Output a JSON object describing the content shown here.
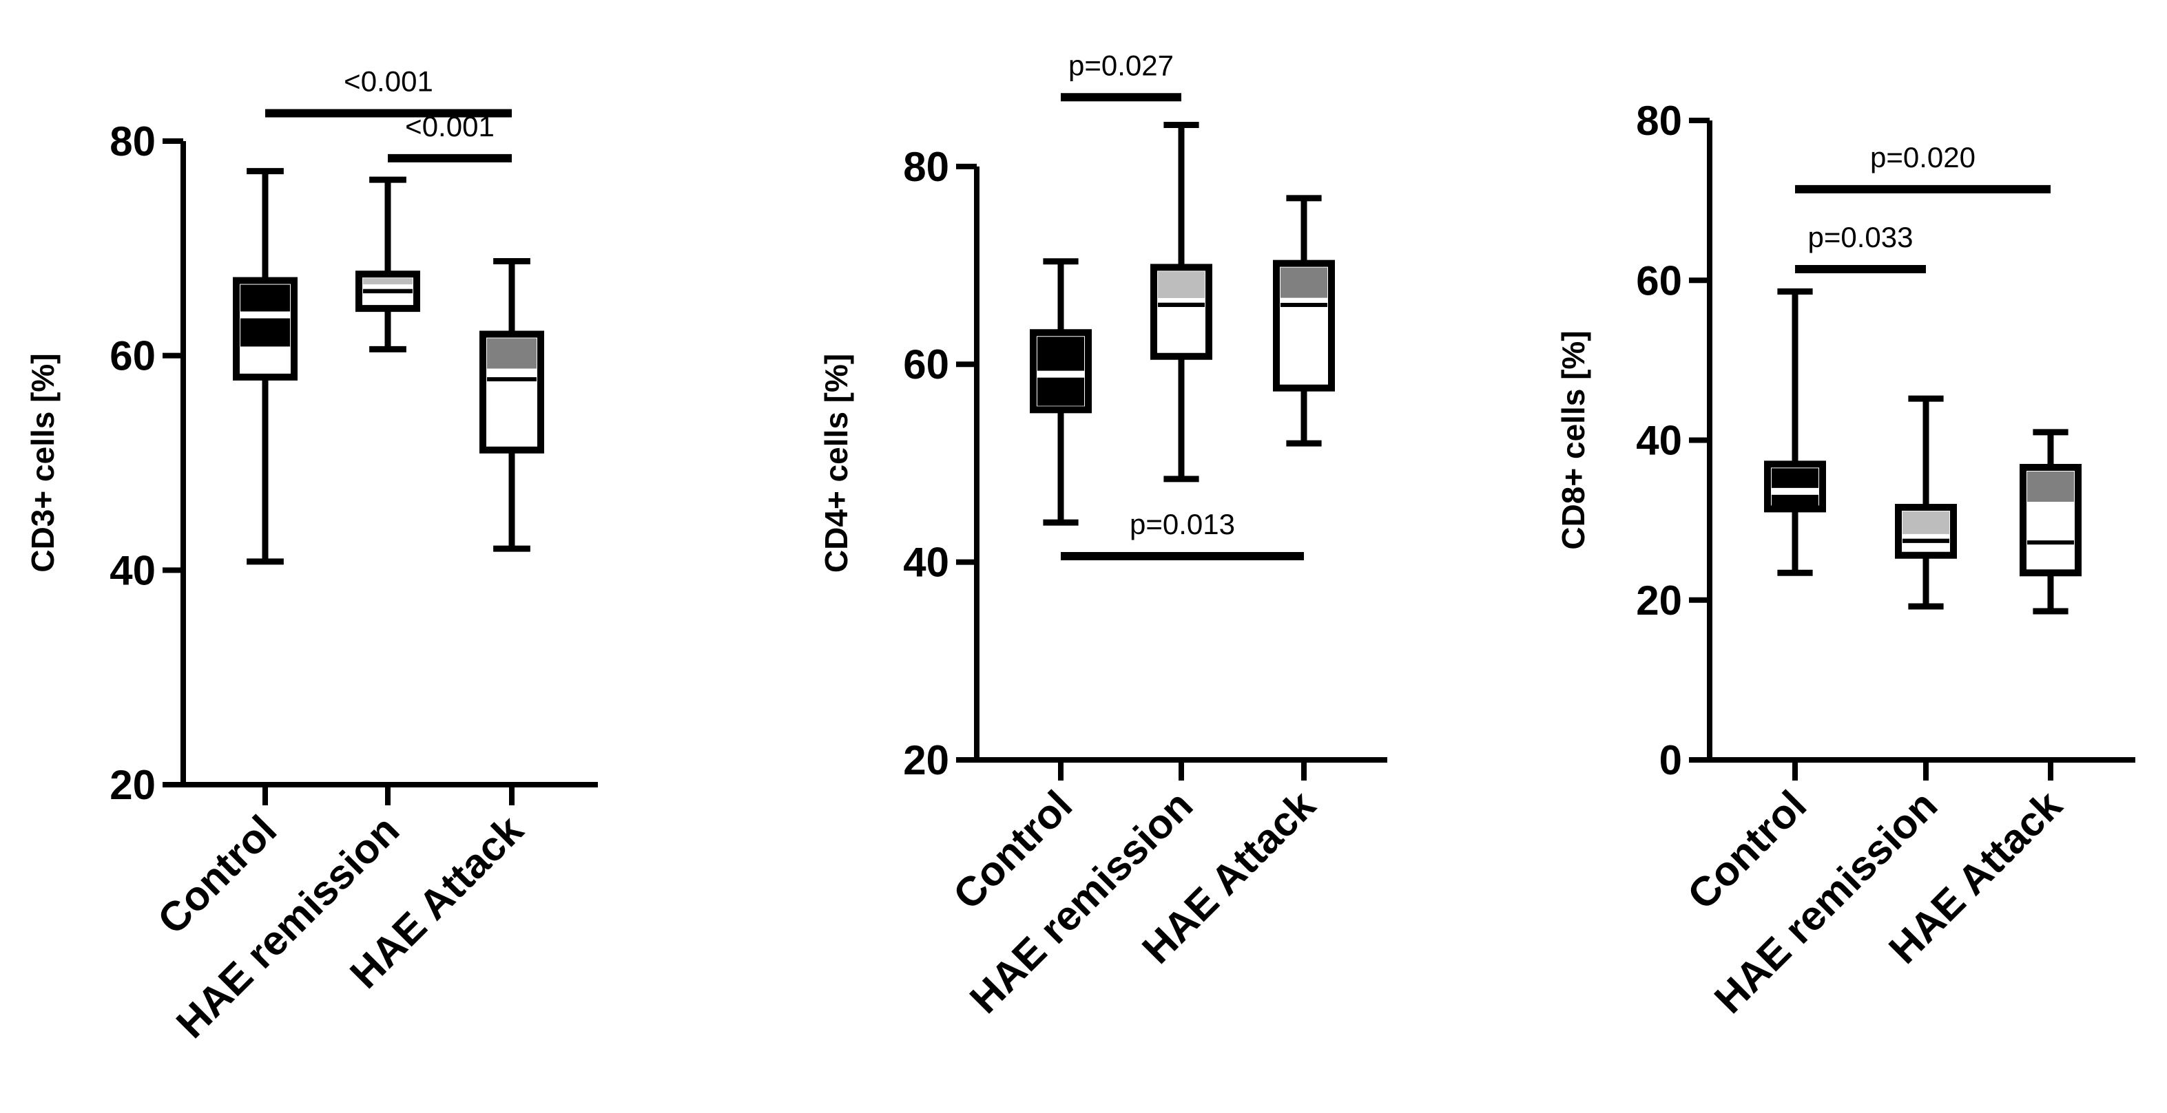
{
  "colors": {
    "ink": "#000000",
    "fill_white": "#ffffff",
    "fill_black": "#000000",
    "fill_gray": "#808080",
    "fill_lightgray": "#bdbdbd"
  },
  "chart_data": [
    {
      "type": "box",
      "ylabel": "CD3+ cells [%]",
      "categories": [
        "Control",
        "HAE remission",
        "HAE Attack"
      ],
      "ylim": [
        20,
        80
      ],
      "yticks": [
        20,
        40,
        60,
        80
      ],
      "boxes": [
        {
          "category": "Control",
          "min": 40.8,
          "q1": 58.0,
          "median": 63.8,
          "q3": 67.0,
          "max": 77.2,
          "style": "black"
        },
        {
          "category": "HAE remission",
          "min": 60.6,
          "q1": 64.4,
          "median": 66.0,
          "q3": 67.6,
          "max": 76.4,
          "style": "lightgray"
        },
        {
          "category": "HAE Attack",
          "min": 42.0,
          "q1": 51.2,
          "median": 57.8,
          "q3": 62.0,
          "max": 68.8,
          "style": "gray"
        }
      ],
      "comparisons": [
        {
          "from": "Control",
          "to": "HAE Attack",
          "label": "<0.001",
          "y": 82.6
        },
        {
          "from": "HAE remission",
          "to": "HAE Attack",
          "label": "<0.001",
          "y": 78.4
        }
      ]
    },
    {
      "type": "box",
      "ylabel": "CD4+ cells [%]",
      "categories": [
        "Control",
        "HAE remission",
        "HAE Attack"
      ],
      "ylim": [
        20,
        85
      ],
      "yticks": [
        20,
        40,
        60,
        80
      ],
      "boxes": [
        {
          "category": "Control",
          "min": 44.0,
          "q1": 55.4,
          "median": 59.0,
          "q3": 63.2,
          "max": 70.4,
          "style": "black"
        },
        {
          "category": "HAE remission",
          "min": 48.4,
          "q1": 60.8,
          "median": 66.0,
          "q3": 69.8,
          "max": 84.2,
          "style": "lightgray"
        },
        {
          "category": "HAE Attack",
          "min": 52.0,
          "q1": 57.6,
          "median": 66.0,
          "q3": 70.2,
          "max": 76.8,
          "style": "gray"
        }
      ],
      "comparisons": [
        {
          "from": "Control",
          "to": "HAE remission",
          "label": "p=0.027",
          "y": 87.0
        },
        {
          "from": "Control",
          "to": "HAE Attack",
          "label": "p=0.013",
          "y": 40.6
        }
      ]
    },
    {
      "type": "box",
      "ylabel": "CD8+ cells [%]",
      "categories": [
        "Control",
        "HAE remission",
        "HAE Attack"
      ],
      "ylim": [
        0,
        80
      ],
      "yticks": [
        0,
        20,
        40,
        60,
        80
      ],
      "boxes": [
        {
          "category": "Control",
          "min": 23.4,
          "q1": 31.4,
          "median": 33.6,
          "q3": 37.0,
          "max": 58.6,
          "style": "black"
        },
        {
          "category": "HAE remission",
          "min": 19.2,
          "q1": 25.6,
          "median": 27.4,
          "q3": 31.6,
          "max": 45.2,
          "style": "lightgray"
        },
        {
          "category": "HAE Attack",
          "min": 18.6,
          "q1": 23.4,
          "median": 27.2,
          "q3": 36.6,
          "max": 41.0,
          "style": "gray"
        }
      ],
      "comparisons": [
        {
          "from": "Control",
          "to": "HAE Attack",
          "label": "p=0.020",
          "y": 71.4
        },
        {
          "from": "Control",
          "to": "HAE remission",
          "label": "p=0.033",
          "y": 61.4
        }
      ]
    }
  ]
}
